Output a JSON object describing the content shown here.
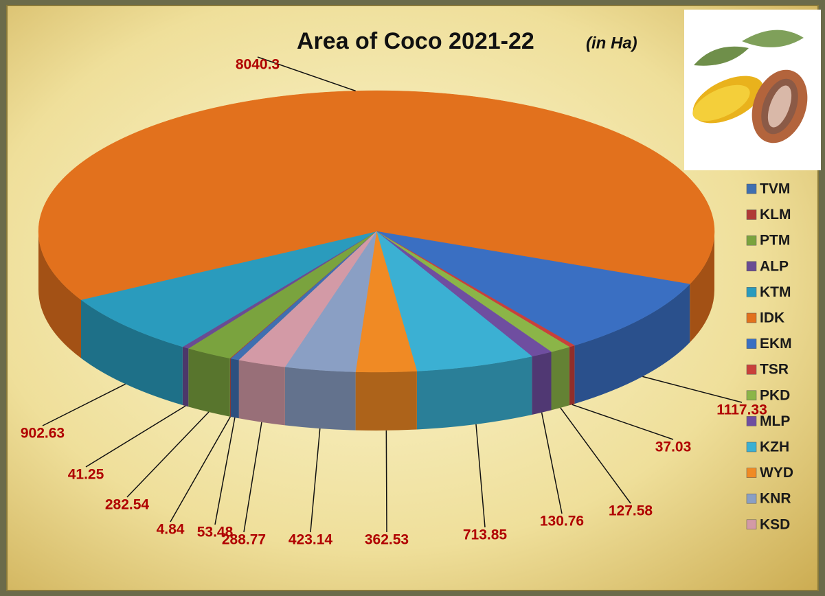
{
  "chart_data": {
    "type": "pie3d",
    "title": "Area of Coco 2021-22",
    "unit": "(in Ha)",
    "categories": [
      "TVM",
      "KLM",
      "PTM",
      "ALP",
      "KTM",
      "IDK",
      "EKM",
      "TSR",
      "PKD",
      "MLP",
      "KZH",
      "WYD",
      "KNR",
      "KSD"
    ],
    "values": [
      53.48,
      4.84,
      282.54,
      41.25,
      902.63,
      8040.3,
      1117.33,
      37.03,
      127.58,
      130.76,
      713.85,
      362.53,
      423.14,
      288.77
    ],
    "colors": [
      "#3f6fb0",
      "#b03a36",
      "#7aa33e",
      "#6a4c93",
      "#2a9bbd",
      "#e2711d",
      "#3a6fc2",
      "#c9403b",
      "#8bb548",
      "#6f4ea0",
      "#3bb0d3",
      "#f08a24",
      "#8a9fc4",
      "#d39aa6"
    ],
    "legend": "right"
  }
}
